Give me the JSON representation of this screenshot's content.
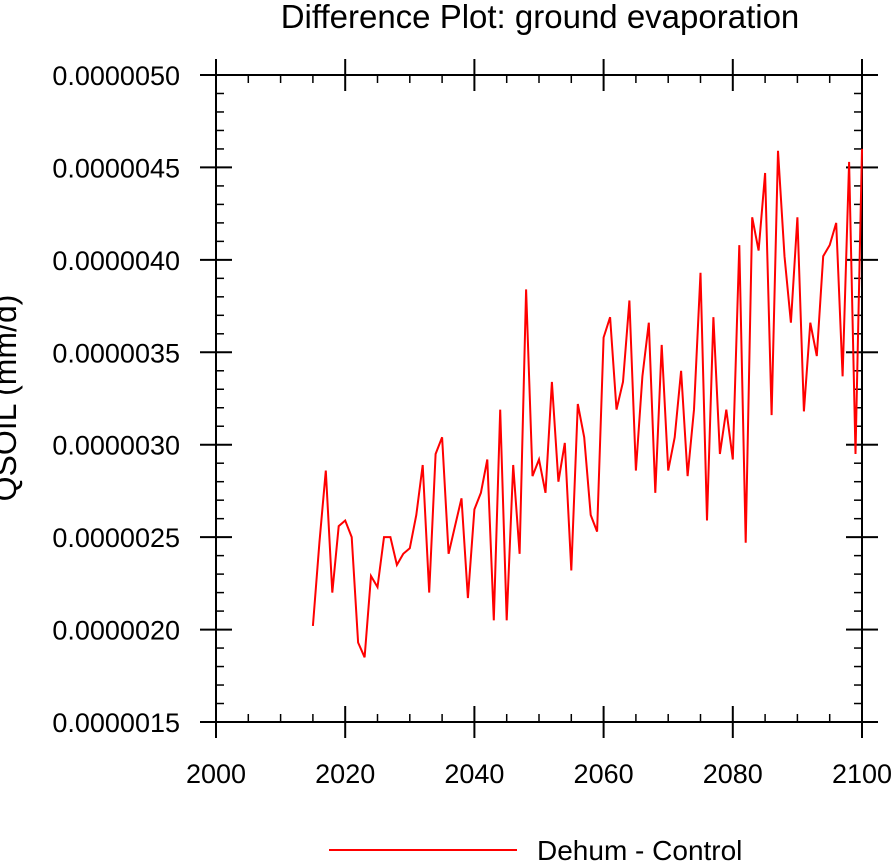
{
  "chart_data": {
    "type": "line",
    "title": "Difference Plot: ground evaporation",
    "xlabel": "",
    "ylabel": "QSOIL  (mm/d)",
    "xlim": [
      2000,
      2100
    ],
    "ylim": [
      1.5e-06,
      5e-06
    ],
    "x_ticks": [
      2000,
      2020,
      2040,
      2060,
      2080,
      2100
    ],
    "x_tick_labels": [
      "2000",
      "2020",
      "2040",
      "2060",
      "2080",
      "2100"
    ],
    "y_ticks": [
      1.5e-06,
      2e-06,
      2.5e-06,
      3e-06,
      3.5e-06,
      4e-06,
      4.5e-06,
      5e-06
    ],
    "y_tick_labels": [
      "0.0000015",
      "0.0000020",
      "0.0000025",
      "0.0000030",
      "0.0000035",
      "0.0000040",
      "0.0000045",
      "0.0000050"
    ],
    "legend": "bottom-center",
    "series": [
      {
        "name": "Dehum - Control",
        "color": "#ff0000",
        "x": [
          2015,
          2016,
          2017,
          2018,
          2019,
          2020,
          2021,
          2022,
          2023,
          2024,
          2025,
          2026,
          2027,
          2028,
          2029,
          2030,
          2031,
          2032,
          2033,
          2034,
          2035,
          2036,
          2037,
          2038,
          2039,
          2040,
          2041,
          2042,
          2043,
          2044,
          2045,
          2046,
          2047,
          2048,
          2049,
          2050,
          2051,
          2052,
          2053,
          2054,
          2055,
          2056,
          2057,
          2058,
          2059,
          2060,
          2061,
          2062,
          2063,
          2064,
          2065,
          2066,
          2067,
          2068,
          2069,
          2070,
          2071,
          2072,
          2073,
          2074,
          2075,
          2076,
          2077,
          2078,
          2079,
          2080,
          2081,
          2082,
          2083,
          2084,
          2085,
          2086,
          2087,
          2088,
          2089,
          2090,
          2091,
          2092,
          2093,
          2094,
          2095,
          2096,
          2097,
          2098,
          2099,
          2100
        ],
        "values": [
          2.02e-06,
          2.47e-06,
          2.86e-06,
          2.2e-06,
          2.56e-06,
          2.59e-06,
          2.5e-06,
          1.93e-06,
          1.85e-06,
          2.29e-06,
          2.23e-06,
          2.5e-06,
          2.5e-06,
          2.35e-06,
          2.41e-06,
          2.44e-06,
          2.62e-06,
          2.89e-06,
          2.2e-06,
          2.95e-06,
          3.04e-06,
          2.41e-06,
          2.56e-06,
          2.71e-06,
          2.17e-06,
          2.65e-06,
          2.74e-06,
          2.92e-06,
          2.05e-06,
          3.19e-06,
          2.05e-06,
          2.89e-06,
          2.41e-06,
          3.84e-06,
          2.83e-06,
          2.92e-06,
          2.74e-06,
          3.34e-06,
          2.8e-06,
          3.01e-06,
          2.32e-06,
          3.22e-06,
          3.04e-06,
          2.62e-06,
          2.53e-06,
          3.58e-06,
          3.69e-06,
          3.19e-06,
          3.34e-06,
          3.78e-06,
          2.86e-06,
          3.37e-06,
          3.66e-06,
          2.74e-06,
          3.54e-06,
          2.86e-06,
          3.04e-06,
          3.4e-06,
          2.83e-06,
          3.19e-06,
          3.93e-06,
          2.59e-06,
          3.69e-06,
          2.95e-06,
          3.19e-06,
          2.92e-06,
          4.08e-06,
          2.47e-06,
          4.23e-06,
          4.05e-06,
          4.47e-06,
          3.16e-06,
          4.59e-06,
          4.02e-06,
          3.66e-06,
          4.23e-06,
          3.18e-06,
          3.66e-06,
          3.48e-06,
          4.02e-06,
          4.08e-06,
          4.2e-06,
          3.37e-06,
          4.53e-06,
          2.95e-06,
          4.6e-06
        ]
      }
    ]
  }
}
